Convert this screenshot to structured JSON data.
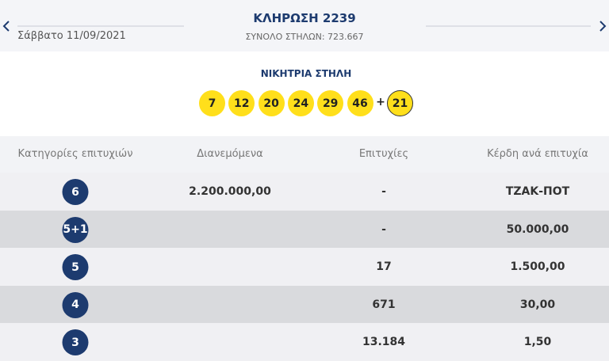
{
  "header": {
    "date": "Σάββατο 11/09/2021",
    "title": "ΚΛΗΡΩΣΗ 2239",
    "subtitle": "ΣΥΝΟΛΟ ΣΤΗΛΩΝ: 723.667"
  },
  "winning": {
    "title": "ΝΙΚΗΤΡΙΑ ΣΤΗΛΗ",
    "numbers": [
      "7",
      "12",
      "20",
      "24",
      "29",
      "46"
    ],
    "plus": "+",
    "joker": "21"
  },
  "table": {
    "headers": [
      "Κατηγορίες επιτυχιών",
      "Διανεμόμενα",
      "Επιτυχίες",
      "Κέρδη ανά επιτυχία"
    ],
    "rows": [
      [
        "6",
        "2.200.000,00",
        "-",
        "ΤΖΑΚ-ΠΟΤ"
      ],
      [
        "5+1",
        null,
        "-",
        "50.000,00"
      ],
      [
        "5",
        null,
        "17",
        "1.500,00"
      ],
      [
        "4",
        null,
        "671",
        "30,00"
      ],
      [
        "3",
        null,
        "13.184",
        "1,50"
      ]
    ]
  }
}
